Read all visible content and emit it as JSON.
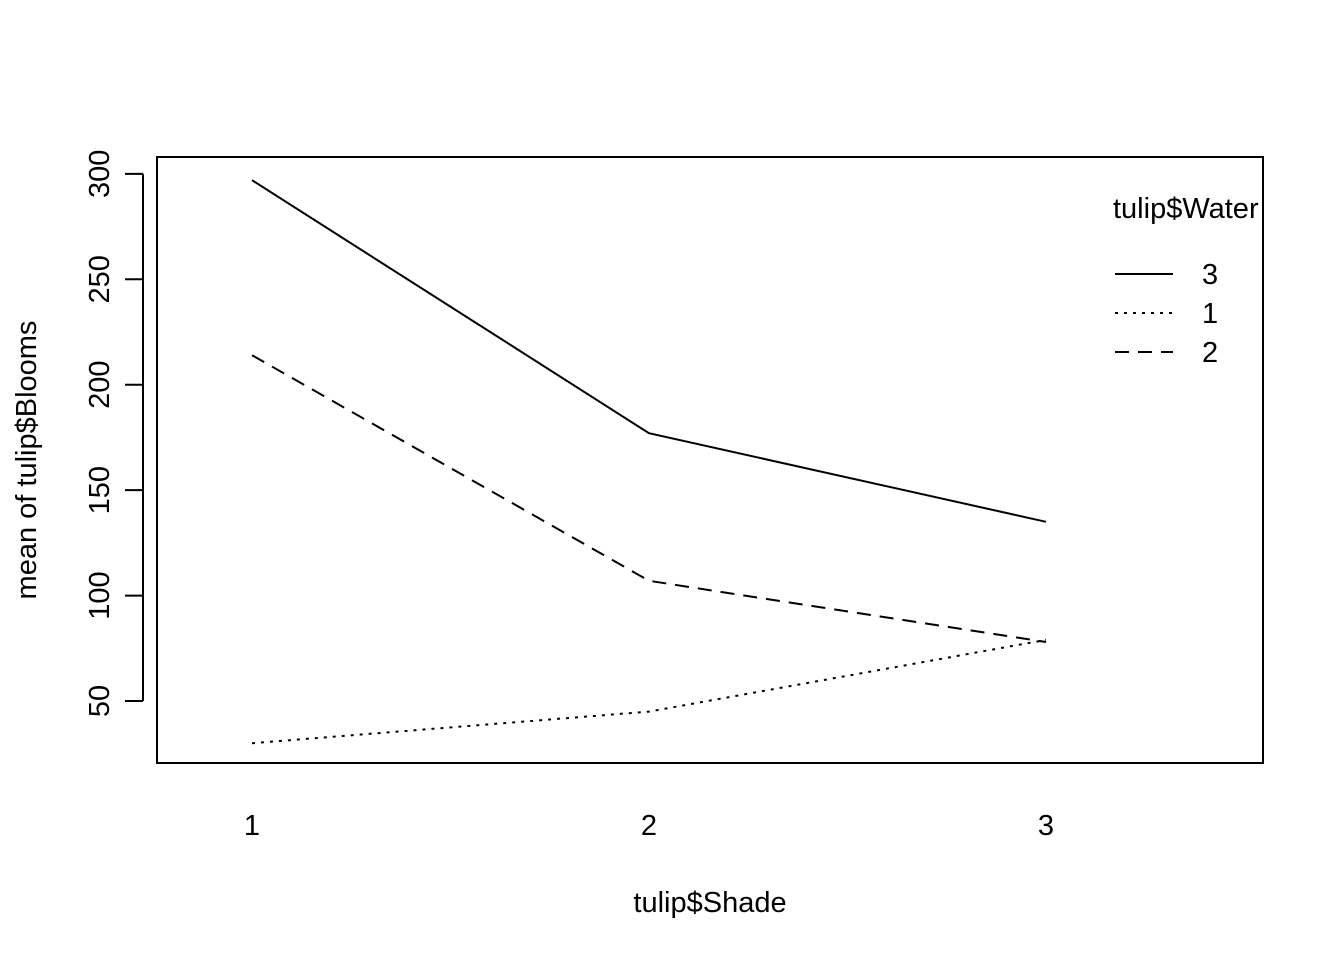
{
  "chart_data": {
    "type": "line",
    "title": "",
    "xlabel": "tulip$Shade",
    "ylabel": "mean of  tulip$Blooms",
    "categories": [
      "1",
      "2",
      "3"
    ],
    "x_ticks": [
      "1",
      "2",
      "3"
    ],
    "y_ticks": [
      50,
      100,
      150,
      200,
      250,
      300
    ],
    "ylim": [
      20.6,
      308.0
    ],
    "grid": false,
    "legend": {
      "title": "tulip$Water",
      "position": "top-right",
      "entries": [
        "3",
        "1",
        "2"
      ]
    },
    "series": [
      {
        "name": "3",
        "line_style": "solid",
        "values": [
          297,
          177,
          135
        ]
      },
      {
        "name": "1",
        "line_style": "dotted",
        "values": [
          30,
          45,
          79
        ]
      },
      {
        "name": "2",
        "line_style": "dashed",
        "values": [
          214,
          107,
          78
        ]
      }
    ],
    "colors": {
      "line": "#000000",
      "background": "#ffffff"
    }
  }
}
